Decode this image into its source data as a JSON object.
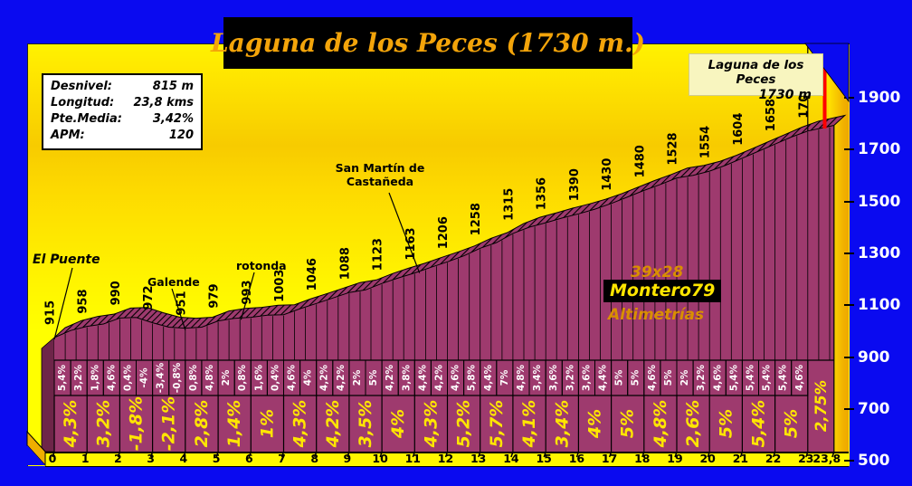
{
  "title_banner": {
    "text": "Laguna de los Peces (1730 m.)"
  },
  "stats_box": {
    "rows": [
      {
        "label": "Desnivel:",
        "value": "815 m"
      },
      {
        "label": "Longitud:",
        "value": "23,8 kms"
      },
      {
        "label": "Pte.Media:",
        "value": "3,42%"
      },
      {
        "label": "APM:",
        "value": "120"
      }
    ]
  },
  "summit_label": {
    "line1": "Laguna de los Peces",
    "line2": "1730 m"
  },
  "landmarks": [
    {
      "name": "El Puente",
      "km": 0
    },
    {
      "name": "Galende",
      "km": 4
    },
    {
      "name": "rotonda",
      "km": 5.7
    },
    {
      "name": "San Martín de Castañeda",
      "km": 11.15
    }
  ],
  "watermark": {
    "line1": "39x28",
    "line2": "Montero79",
    "line3": "Altimetrías"
  },
  "y_axis": {
    "unit": "m",
    "labels": [
      "1900",
      "1700",
      "1500",
      "1300",
      "1100",
      "900",
      "700",
      "500"
    ]
  },
  "x_axis": {
    "unit": "km",
    "labels": [
      "0",
      "1",
      "2",
      "3",
      "4",
      "5",
      "6",
      "7",
      "8",
      "9",
      "10",
      "11",
      "12",
      "13",
      "14",
      "15",
      "16",
      "17",
      "18",
      "19",
      "20",
      "21",
      "22",
      "23",
      "23,8"
    ]
  },
  "colors": {
    "background_blue": "#0a0af0",
    "plot_yellow": "#ffff00",
    "plot_gold": "#f7cb00",
    "profile_plum": "#9e3a6e",
    "profile_side_dark": "#6e2549",
    "floor_gold": "#efae00",
    "summit_line_red": "#ff0000",
    "title_orange": "#f3a40a",
    "grad_label_yellow": "#ffe600",
    "grad_label_white": "#ffffff",
    "summit_box_cream": "#f8f5bf"
  },
  "chart_data": {
    "type": "area",
    "title": "Laguna de los Peces (1730 m.)",
    "xlabel": "km",
    "ylabel": "m",
    "xlim": [
      0,
      23.8
    ],
    "ylim": [
      500,
      1900
    ],
    "y_tick_step": 200,
    "grid": true,
    "start_elevation_m": 915,
    "summit_elevation_m": 1730,
    "total_length_km": 23.8,
    "total_gain_m": 815,
    "avg_gradient_pct": 3.42,
    "x_km": [
      0,
      1,
      2,
      3,
      4,
      5,
      6,
      7,
      8,
      9,
      10,
      11,
      12,
      13,
      14,
      15,
      16,
      17,
      18,
      19,
      20,
      21,
      22,
      23,
      23.8
    ],
    "elevations_m": [
      915,
      958,
      990,
      972,
      951,
      979,
      993,
      1003,
      1046,
      1088,
      1123,
      1163,
      1206,
      1258,
      1315,
      1356,
      1390,
      1430,
      1480,
      1528,
      1554,
      1604,
      1658,
      1708,
      1730
    ],
    "km_gradients_pct": [
      4.3,
      3.2,
      -1.8,
      -2.1,
      2.8,
      1.4,
      1,
      4.3,
      4.2,
      3.5,
      4,
      4.3,
      5.2,
      5.7,
      4.1,
      3.4,
      4,
      5,
      4.8,
      2.6,
      5,
      5.4,
      5
    ],
    "final_segment": {
      "length_km": 0.8,
      "gradient_pct": 2.75
    },
    "half_km_gradients_pct": [
      5.4,
      3.2,
      1.8,
      4.6,
      0.4,
      -4,
      -3.4,
      -0.8,
      0.8,
      4.8,
      2,
      0.8,
      1.6,
      0.4,
      4.6,
      4,
      4.2,
      4.2,
      2,
      5,
      4.2,
      3.8,
      4.4,
      4.2,
      4.6,
      5.8,
      4.4,
      7,
      4.8,
      3.4,
      3.6,
      3.2,
      3.6,
      4.4,
      5,
      5,
      4.6,
      5,
      2,
      3.2,
      4.6,
      5.4,
      5.4,
      5.4,
      5.4,
      4.6
    ]
  }
}
